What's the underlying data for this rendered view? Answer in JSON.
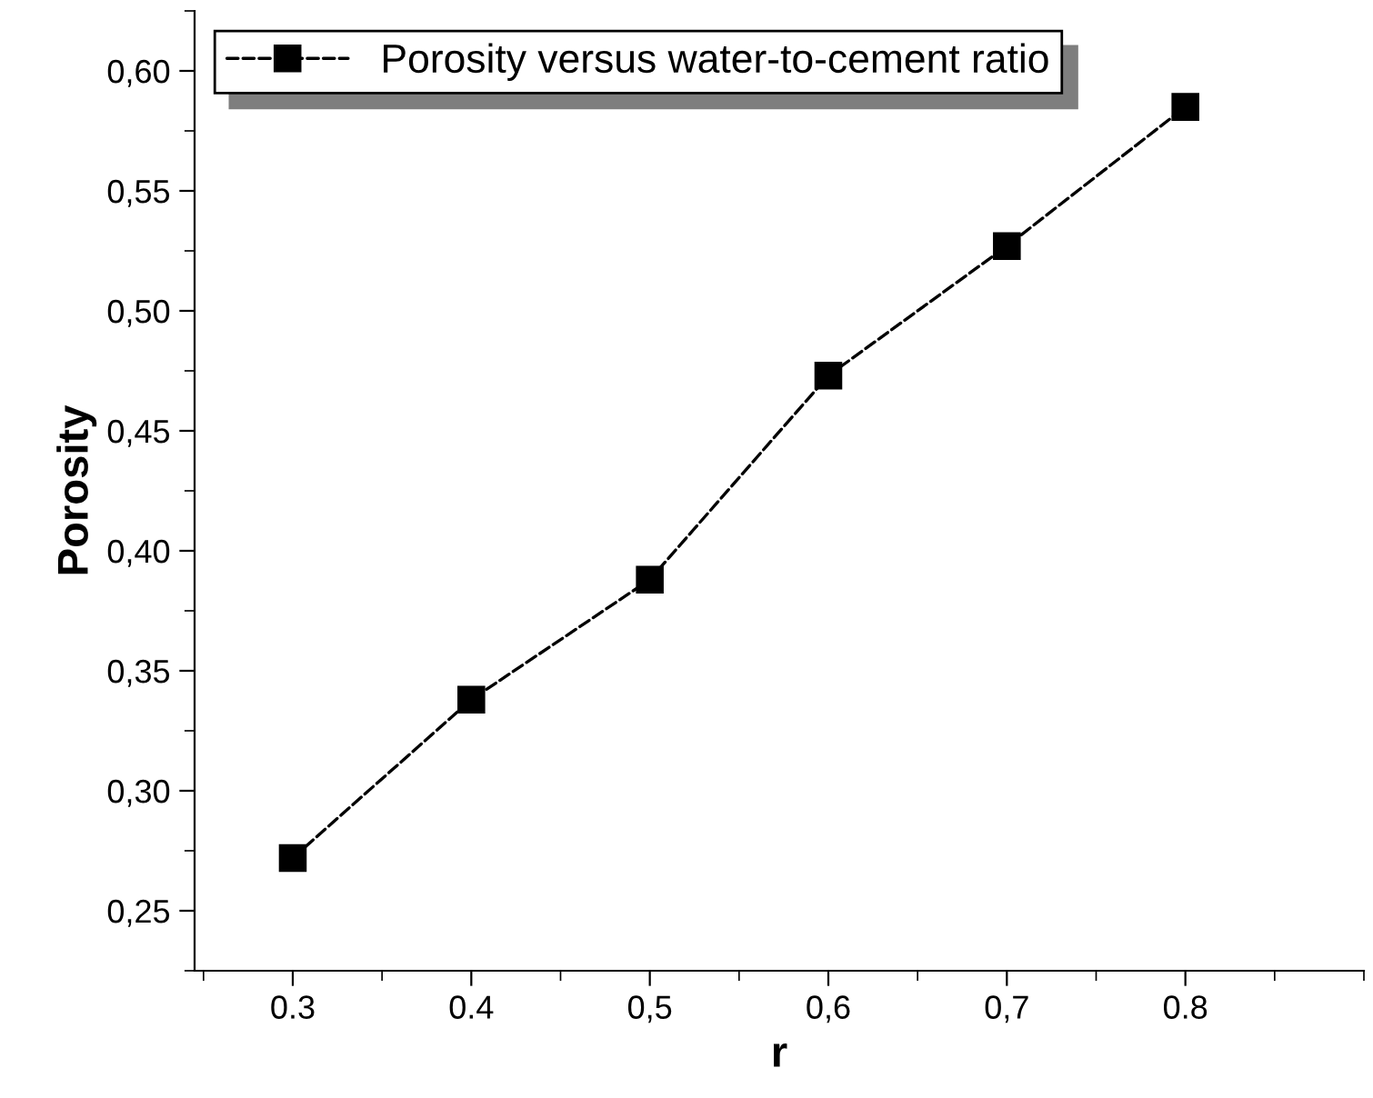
{
  "chart_data": {
    "type": "line",
    "xlabel": "r",
    "ylabel": "Porosity",
    "x": [
      0.3,
      0.4,
      0.5,
      0.6,
      0.7,
      0.8
    ],
    "series": [
      {
        "name": "Porosity versus water-to-cement ratio",
        "color": "#000000",
        "values": [
          0.272,
          0.338,
          0.388,
          0.473,
          0.527,
          0.585
        ]
      }
    ],
    "xlim": [
      0.245,
      0.9
    ],
    "ylim": [
      0.225,
      0.625
    ],
    "xticks": [
      {
        "value": 0.3,
        "label": "0.3"
      },
      {
        "value": 0.4,
        "label": "0.4"
      },
      {
        "value": 0.5,
        "label": "0,5"
      },
      {
        "value": 0.6,
        "label": "0,6"
      },
      {
        "value": 0.7,
        "label": "0,7"
      },
      {
        "value": 0.8,
        "label": "0.8"
      }
    ],
    "yticks": [
      {
        "value": 0.25,
        "label": "0,25"
      },
      {
        "value": 0.3,
        "label": "0,30"
      },
      {
        "value": 0.35,
        "label": "0,35"
      },
      {
        "value": 0.4,
        "label": "0,40"
      },
      {
        "value": 0.45,
        "label": "0,45"
      },
      {
        "value": 0.5,
        "label": "0,50"
      },
      {
        "value": 0.55,
        "label": "0,55"
      },
      {
        "value": 0.6,
        "label": "0,60"
      }
    ],
    "grid": false,
    "legend": "top left",
    "marker": "square",
    "line_style": "dashed"
  }
}
